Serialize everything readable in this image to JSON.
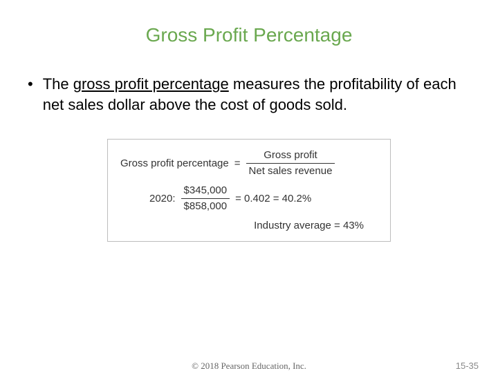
{
  "title": {
    "text": "Gross Profit Percentage",
    "color": "#6aa84f"
  },
  "bullet": {
    "pre": "The ",
    "underlined": "gross profit percentage",
    "post": " measures the profitability of each net sales dollar above the cost of goods sold."
  },
  "formula": {
    "label": "Gross profit percentage",
    "numerator": "Gross profit",
    "denominator": "Net sales revenue",
    "year_label": "2020:",
    "calc_num": "$345,000",
    "calc_den": "$858,000",
    "result_text": "= 0.402 = 40.2%",
    "industry_text": "Industry average = 43%",
    "border_color": "#bdbdbd",
    "text_color": "#333333"
  },
  "footer": {
    "copyright": "© 2018 Pearson Education, Inc.",
    "page": "15-35"
  }
}
